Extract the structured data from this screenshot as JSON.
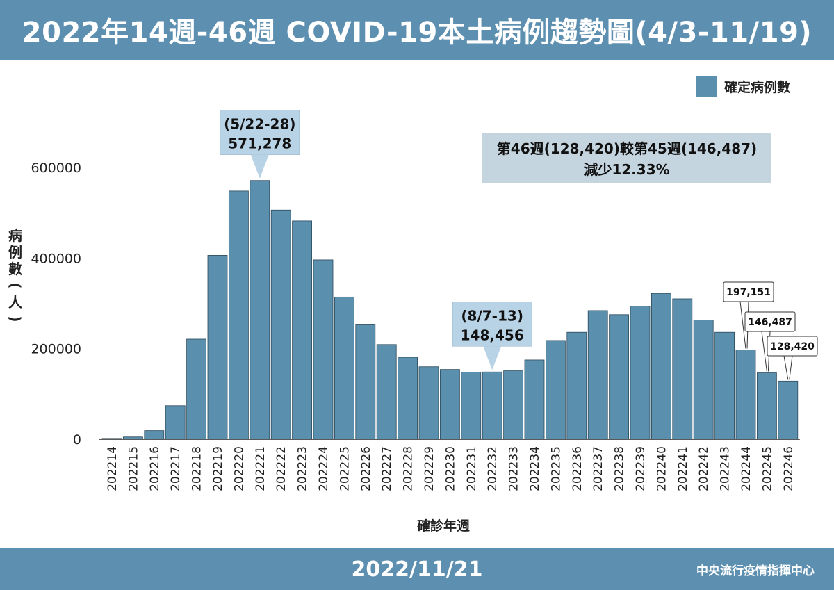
{
  "header": {
    "title": "2022年14週-46週 COVID-19本土病例趨勢圖(4/3-11/19)"
  },
  "footer": {
    "date": "2022/11/21",
    "org": "中央流行疫情指揮中心"
  },
  "colors": {
    "bar": "#5b8fae",
    "header": "#5c8fb0",
    "callout": "#b9d3e6",
    "note_box": "#c5d5e0"
  },
  "chart_data": {
    "type": "bar",
    "categories": [
      "202214",
      "202215",
      "202216",
      "202217",
      "202218",
      "202219",
      "202220",
      "202221",
      "202222",
      "202223",
      "202224",
      "202225",
      "202226",
      "202227",
      "202228",
      "202229",
      "202230",
      "202231",
      "202232",
      "202233",
      "202234",
      "202235",
      "202236",
      "202237",
      "202238",
      "202239",
      "202240",
      "202241",
      "202242",
      "202243",
      "202244",
      "202245",
      "202246"
    ],
    "series": [
      {
        "name": "確定病例數",
        "values": [
          1800,
          5000,
          19000,
          74000,
          221000,
          406000,
          548000,
          571278,
          506000,
          482000,
          396000,
          314000,
          254000,
          209000,
          181000,
          160000,
          154000,
          148000,
          148456,
          151000,
          175000,
          218000,
          236000,
          284000,
          275000,
          294000,
          322000,
          310000,
          263000,
          236000,
          197151,
          146487,
          128420
        ]
      }
    ],
    "ylim": [
      0,
      650000
    ],
    "yticks": [
      "0",
      "200000",
      "400000",
      "600000"
    ],
    "ytick_values": [
      0,
      200000,
      400000,
      600000
    ],
    "ylabel": "病例數(人)",
    "xlabel": "確診年週",
    "legend": {
      "label": "確定病例數",
      "position": "top-right"
    },
    "annotations": [
      {
        "label": "(5/22-28)",
        "value": "571,278",
        "category": "202221"
      },
      {
        "label": "(8/7-13)",
        "value": "148,456",
        "category": "202232"
      }
    ],
    "value_labels": [
      {
        "category": "202244",
        "text": "197,151"
      },
      {
        "category": "202245",
        "text": "146,487"
      },
      {
        "category": "202246",
        "text": "128,420"
      }
    ],
    "note": {
      "line1": "第46週(128,420)較第45週(146,487)",
      "line2": "減少12.33%"
    }
  }
}
